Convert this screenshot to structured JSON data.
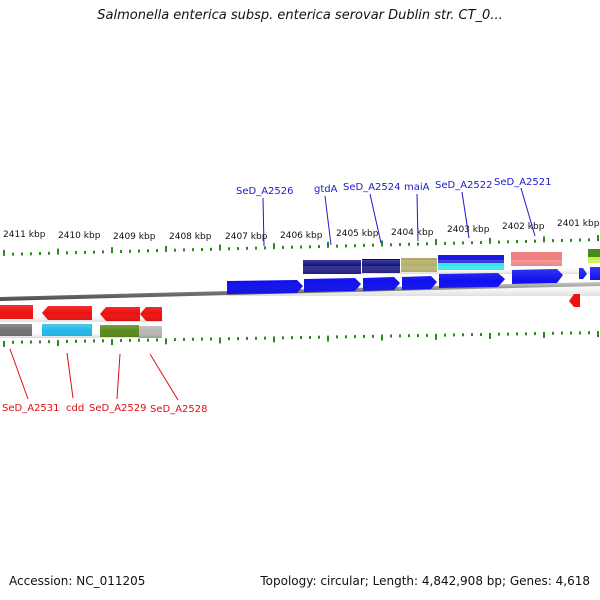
{
  "title": "Salmonella enterica subsp. enterica serovar Dublin str. CT_0...",
  "footer": {
    "accession": "Accession: NC_011205",
    "topology": "Topology: circular; Length: 4,842,908 bp; Genes: 4,618"
  },
  "colors": {
    "forward_label": "#1a1acc",
    "reverse_label": "#dd1111",
    "tick": "#2a8a1a",
    "backbone": "#8c8c8c",
    "forward_gene": "#1010ee",
    "reverse_gene": "#ee1111"
  },
  "scale_labels": [
    "2411 kbp",
    "2410 kbp",
    "2409 kbp",
    "2408 kbp",
    "2407 kbp",
    "2406 kbp",
    "2405 kbp",
    "2404 kbp",
    "2403 kbp",
    "2402 kbp",
    "2401 kbp"
  ],
  "forward_gene_labels": [
    "SeD_A2526",
    "gtdA",
    "SeD_A2524",
    "maiA",
    "SeD_A2522",
    "SeD_A2521"
  ],
  "reverse_gene_labels": [
    "SeD_A2531",
    "cdd",
    "SeD_A2529",
    "SeD_A2528"
  ]
}
